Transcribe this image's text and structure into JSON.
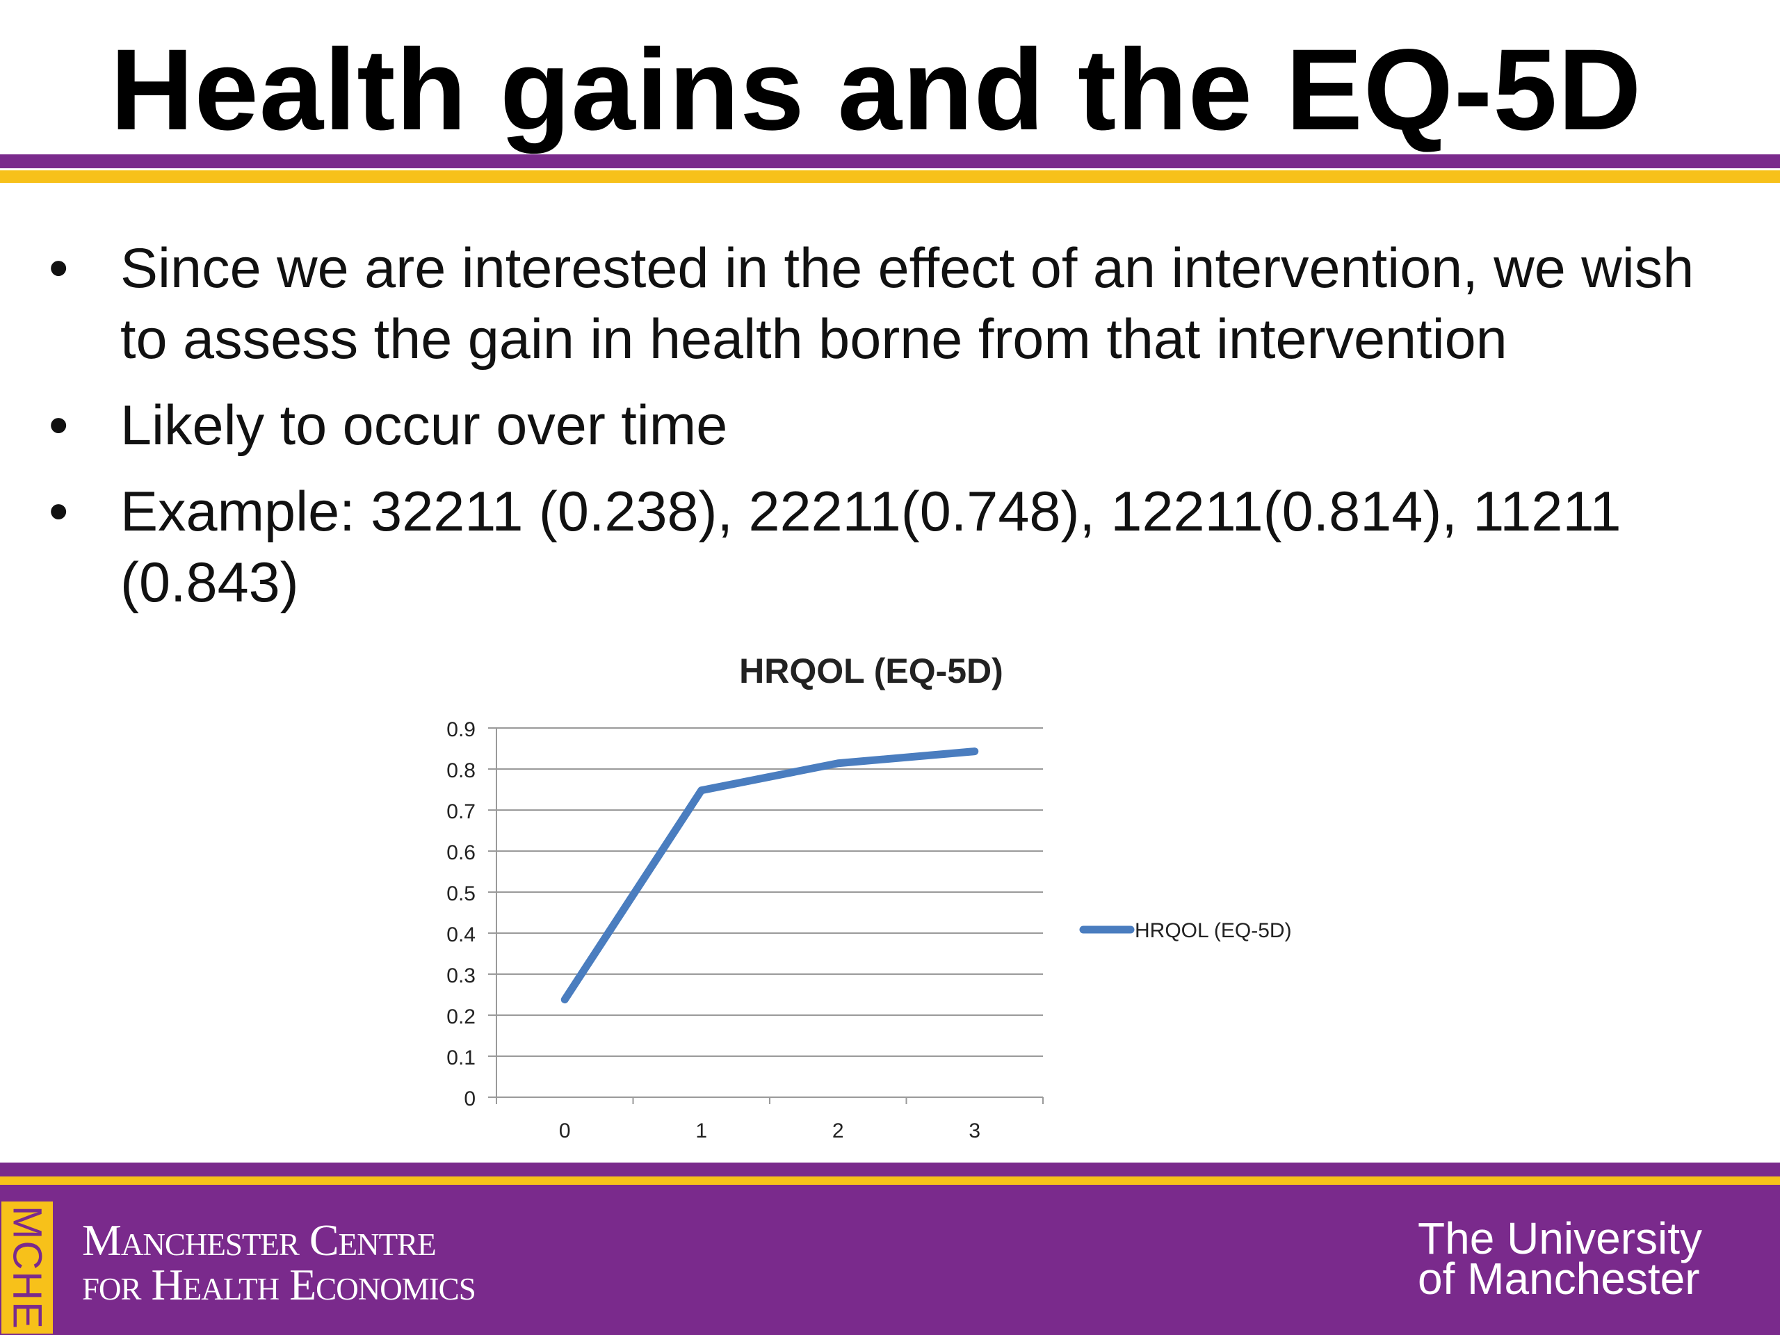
{
  "slide": {
    "title": "Health gains and the EQ-5D",
    "bullet_symbol": "•",
    "bullets": [
      "Since we are interested in the effect of an intervention, we wish to assess the gain in health borne from that intervention",
      "Likely to occur over time",
      "Example: 32211 (0.238), 22211(0.748), 12211(0.814), 11211 (0.843)"
    ]
  },
  "colors": {
    "purple": "#7a2a8c",
    "gold": "#f7c11a",
    "series": "#4a7dbf",
    "grid": "#9a9a9a"
  },
  "chart_data": {
    "type": "line",
    "title": "HRQOL (EQ-5D)",
    "x": [
      0,
      1,
      2,
      3
    ],
    "categories": [
      "0",
      "1",
      "2",
      "3"
    ],
    "series": [
      {
        "name": "HRQOL (EQ-5D)",
        "values": [
          0.238,
          0.748,
          0.814,
          0.843
        ]
      }
    ],
    "ylim": [
      0,
      0.9
    ],
    "yticks": [
      "0",
      "0.1",
      "0.2",
      "0.3",
      "0.4",
      "0.5",
      "0.6",
      "0.7",
      "0.8",
      "0.9"
    ],
    "grid": true,
    "legend_position": "right"
  },
  "footer": {
    "tab_label": "MCHE",
    "centre_line1": "Manchester Centre",
    "centre_line2": "for Health Economics",
    "university_line1": "The University",
    "university_line2": "of Manchester"
  }
}
